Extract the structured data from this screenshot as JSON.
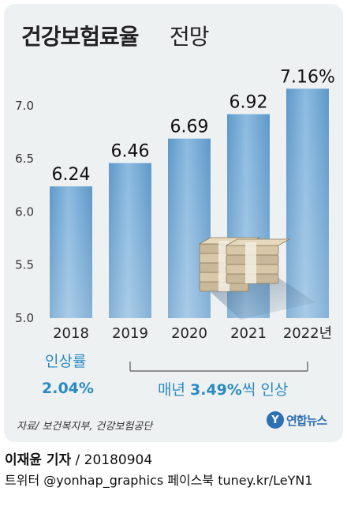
{
  "header": {
    "title_bold": "건강보험료율",
    "title_light": "전망"
  },
  "chart_data": {
    "type": "bar",
    "categories": [
      "2018",
      "2019",
      "2020",
      "2021",
      "2022년"
    ],
    "values": [
      6.24,
      6.46,
      6.69,
      6.92,
      7.16
    ],
    "value_labels": [
      "6.24",
      "6.46",
      "6.69",
      "6.92",
      "7.16%"
    ],
    "ylim": [
      5.0,
      7.2
    ],
    "yticks": [
      "5.0",
      "5.5",
      "6.0",
      "6.5",
      "7.0"
    ],
    "ytick_values": [
      5.0,
      5.5,
      6.0,
      6.5,
      7.0
    ],
    "grid": false,
    "bar_color": "#6fa7d4",
    "bar_color_light": "#a9cbe7"
  },
  "annotations": {
    "rate_label": "인상률",
    "rate_value": "2.04%",
    "annual_prefix": "매년 ",
    "annual_value": "3.49%",
    "annual_suffix": "씩 인상"
  },
  "footer": {
    "source": "자료/ 보건복지부, 건강보험공단",
    "logo_text": "연합뉴스",
    "logo_mark": "Y",
    "reporter": "이재윤 기자",
    "date": " / 20180904",
    "social": "트위터 @yonhap_graphics  페이스북 tuney.kr/LeYN1"
  },
  "colors": {
    "accent": "#2a8bc0",
    "card_bg": "#eef1f2"
  }
}
